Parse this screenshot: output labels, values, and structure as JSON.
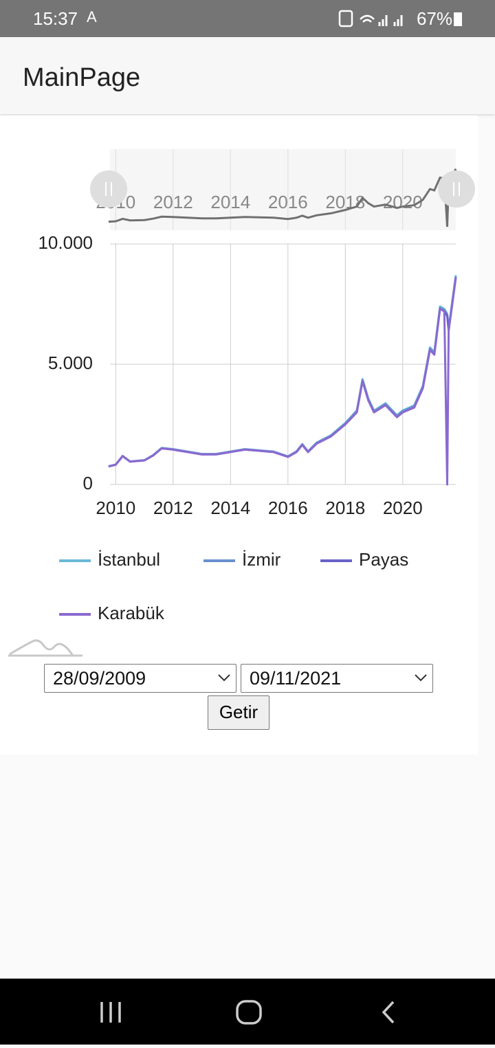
{
  "status_bar": {
    "time": "15:37",
    "battery": "67%"
  },
  "app_bar": {
    "title": "MainPage"
  },
  "chart_data": {
    "type": "line",
    "x": [
      2009.75,
      2010.0,
      2010.24,
      2010.5,
      2011.0,
      2011.3,
      2011.6,
      2012.0,
      2012.5,
      2013.0,
      2013.5,
      2014.0,
      2014.5,
      2015.0,
      2015.5,
      2016.0,
      2016.3,
      2016.5,
      2016.7,
      2017.0,
      2017.5,
      2018.0,
      2018.4,
      2018.6,
      2018.8,
      2019.0,
      2019.4,
      2019.8,
      2020.0,
      2020.4,
      2020.7,
      2020.95,
      2021.1,
      2021.3,
      2021.45,
      2021.55,
      2021.6,
      2021.85
    ],
    "series": [
      {
        "name": "İstanbul",
        "color": "#6ab8d8",
        "values": [
          760,
          830,
          1190,
          960,
          1010,
          1220,
          1520,
          1470,
          1370,
          1270,
          1270,
          1370,
          1470,
          1420,
          1370,
          1170,
          1380,
          1680,
          1380,
          1740,
          2050,
          2560,
          3080,
          4380,
          3580,
          3070,
          3380,
          2880,
          3080,
          3290,
          4100,
          5700,
          5500,
          7400,
          7300,
          7100,
          6500,
          8700
        ]
      },
      {
        "name": "İzmir",
        "color": "#6a8fd0",
        "values": [
          755,
          825,
          1185,
          955,
          1005,
          1210,
          1510,
          1460,
          1360,
          1260,
          1260,
          1360,
          1460,
          1410,
          1360,
          1160,
          1365,
          1665,
          1365,
          1720,
          2025,
          2530,
          3040,
          4340,
          3540,
          3035,
          3340,
          2840,
          3040,
          3245,
          4050,
          5650,
          5450,
          7350,
          7250,
          7050,
          6450,
          8650
        ]
      },
      {
        "name": "Payas",
        "color": "#6a62c8",
        "values": [
          750,
          820,
          1180,
          950,
          1000,
          1200,
          1500,
          1450,
          1350,
          1250,
          1250,
          1350,
          1450,
          1400,
          1350,
          1150,
          1350,
          1650,
          1350,
          1700,
          2000,
          2500,
          3000,
          4300,
          3500,
          3000,
          3300,
          2800,
          3000,
          3200,
          4000,
          5600,
          5400,
          7300,
          7200,
          7000,
          6400,
          8600
        ]
      },
      {
        "name": "Karabük",
        "color": "#8a6ad0",
        "values": [
          750,
          820,
          1180,
          950,
          1000,
          1200,
          1500,
          1450,
          1350,
          1250,
          1250,
          1350,
          1450,
          1400,
          1350,
          1150,
          1350,
          1650,
          1350,
          1700,
          2000,
          2500,
          3000,
          4300,
          3500,
          3000,
          3300,
          2800,
          3000,
          3200,
          4000,
          5600,
          5400,
          7300,
          7200,
          0,
          6400,
          8600
        ]
      }
    ],
    "xlim": [
      2009.8,
      2021.85
    ],
    "xticks": [
      2010,
      2012,
      2014,
      2016,
      2018,
      2020
    ],
    "ylim": [
      0,
      10000
    ],
    "yticks": [
      0,
      {
        "value": 5000,
        "label": "5.000"
      },
      {
        "value": 10000,
        "label": "10.000"
      }
    ],
    "grid": true
  },
  "form": {
    "start_date": "28/09/2009",
    "end_date": "09/11/2021",
    "button": "Getir"
  }
}
